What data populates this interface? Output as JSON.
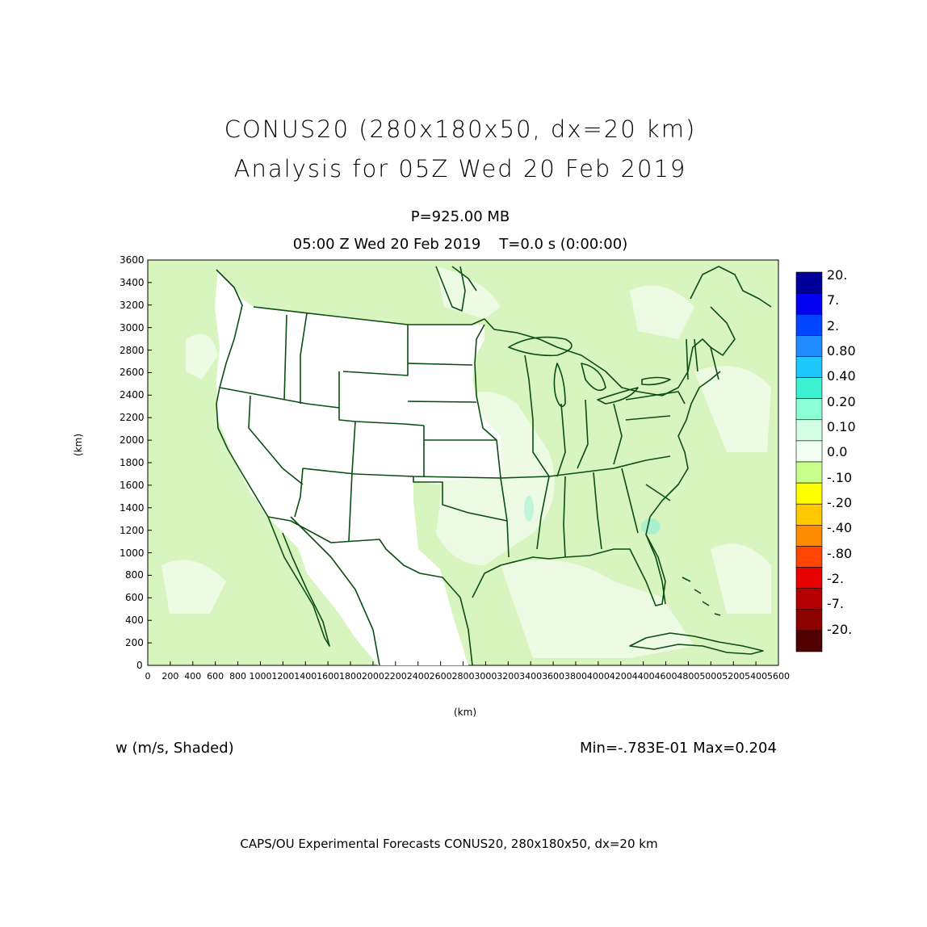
{
  "title": {
    "line1": "CONUS20 (280x180x50, dx=20 km)",
    "line2": "Analysis for 05Z Wed 20 Feb 2019"
  },
  "subtitle": {
    "pressure": "P=925.00 MB",
    "time": "05:00 Z Wed 20 Feb 2019    T=0.0 s (0:00:00)"
  },
  "axes": {
    "x_label": "(km)",
    "y_label": "(km)",
    "x_ticks": [
      "0",
      "200",
      "400",
      "600",
      "800",
      "1000",
      "1200",
      "1400",
      "1600",
      "1800",
      "2000",
      "2200",
      "2400",
      "2600",
      "2800",
      "3000",
      "3200",
      "3400",
      "3600",
      "3800",
      "4000",
      "4200",
      "4400",
      "4600",
      "4800",
      "5000",
      "5200",
      "5400",
      "5600"
    ],
    "y_ticks": [
      "0",
      "200",
      "400",
      "600",
      "800",
      "1000",
      "1200",
      "1400",
      "1600",
      "1800",
      "2000",
      "2200",
      "2400",
      "2600",
      "2800",
      "3000",
      "3200",
      "3400",
      "3600"
    ],
    "xlim": [
      0,
      5600
    ],
    "ylim": [
      0,
      3600
    ]
  },
  "colorbar": {
    "levels": [
      {
        "label": "20.",
        "color": "#000099"
      },
      {
        "label": "7.",
        "color": "#0000ee"
      },
      {
        "label": "2.",
        "color": "#0044ff"
      },
      {
        "label": "0.80",
        "color": "#1e8bff"
      },
      {
        "label": "0.40",
        "color": "#1ec8ff"
      },
      {
        "label": "0.20",
        "color": "#3cf0d2"
      },
      {
        "label": "0.10",
        "color": "#8cffd8"
      },
      {
        "label": "0.0",
        "color": "#d2ffe6"
      },
      {
        "label": "-.10",
        "color": "#f0fff0"
      },
      {
        "label": "-.20",
        "color": "#c8ff8c"
      },
      {
        "label": "-.40",
        "color": "#ffff00"
      },
      {
        "label": "-.80",
        "color": "#ffc800"
      },
      {
        "label": "-2.",
        "color": "#ff8c00"
      },
      {
        "label": "-7.",
        "color": "#ff4600"
      },
      {
        "label": "-20.",
        "color": "#e60000"
      },
      {
        "label": "",
        "color": "#b40000"
      },
      {
        "label": "",
        "color": "#8c0000"
      },
      {
        "label": "",
        "color": "#500000"
      }
    ]
  },
  "field": {
    "variable_label": "w (m/s, Shaded)",
    "minmax_label": "Min=-.783E-01 Max=0.204"
  },
  "footer": "CAPS/OU Experimental Forecasts  CONUS20, 280x180x50, dx=20 km",
  "colors": {
    "background_field": "#d8f5c0",
    "pale_field": "#eefbe6",
    "land_mask": "#ffffff",
    "map_lines": "#0b4d12",
    "updraft_spot": "#a8f0d0"
  }
}
